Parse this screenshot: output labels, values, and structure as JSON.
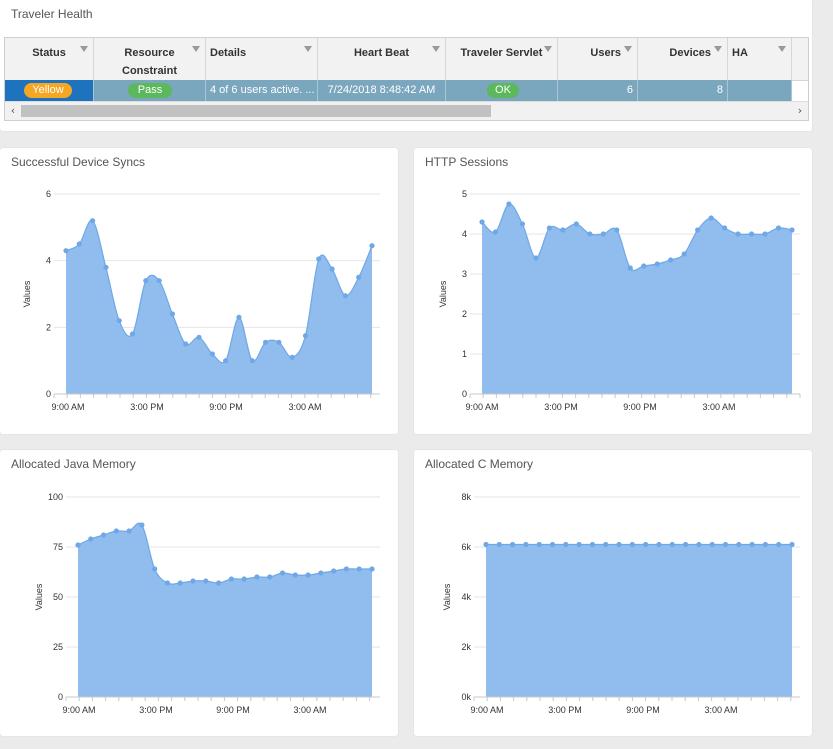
{
  "health": {
    "title": "Traveler Health",
    "columns": [
      {
        "line1": "Status",
        "line2": ""
      },
      {
        "line1": "Resource",
        "line2": "Constraint"
      },
      {
        "line1": "Details",
        "line2": ""
      },
      {
        "line1": "Heart Beat",
        "line2": ""
      },
      {
        "line1": "Traveler Servlet",
        "line2": ""
      },
      {
        "line1": "Users",
        "line2": ""
      },
      {
        "line1": "Devices",
        "line2": ""
      },
      {
        "line1": "HA",
        "line2": ""
      }
    ],
    "row": {
      "status": "Yellow",
      "resource_constraint": "Pass",
      "details": "4 of 6 users active. ...",
      "heart_beat": "7/24/2018 8:48:42 AM",
      "traveler_servlet": "OK",
      "users": "6",
      "devices": "8",
      "ha": ""
    },
    "colors": {
      "yellow_badge": "#f5a623",
      "pass_badge": "#5cb85c",
      "ok_badge": "#5cb85c",
      "row_selected": "#7aa6be"
    }
  },
  "chart_data": [
    {
      "type": "area",
      "title": "Successful Device Syncs",
      "ylabel": "Values",
      "ylim": [
        0,
        6
      ],
      "yticks": [
        "0",
        "2",
        "4",
        "6"
      ],
      "xticks": [
        "9:00 AM",
        "3:00 PM",
        "9:00 PM",
        "3:00 AM"
      ],
      "values": [
        4.3,
        4.5,
        5.2,
        3.8,
        2.2,
        1.8,
        3.4,
        3.4,
        2.4,
        1.5,
        1.7,
        1.2,
        1.0,
        2.3,
        1.0,
        1.55,
        1.55,
        1.1,
        1.75,
        4.05,
        3.75,
        2.95,
        3.5,
        4.45
      ],
      "color": "#90bdee"
    },
    {
      "type": "area",
      "title": "HTTP Sessions",
      "ylabel": "Values",
      "ylim": [
        0,
        5
      ],
      "yticks": [
        "0",
        "1",
        "2",
        "3",
        "4",
        "5"
      ],
      "xticks": [
        "9:00 AM",
        "3:00 PM",
        "9:00 PM",
        "3:00 AM"
      ],
      "values": [
        4.3,
        4.05,
        4.75,
        4.25,
        3.4,
        4.15,
        4.1,
        4.25,
        4.0,
        4.0,
        4.1,
        3.15,
        3.2,
        3.25,
        3.35,
        3.5,
        4.1,
        4.4,
        4.15,
        4.0,
        4.0,
        4.0,
        4.15,
        4.1
      ],
      "color": "#90bdee"
    },
    {
      "type": "area",
      "title": "Allocated Java Memory",
      "ylabel": "Values",
      "ylim": [
        0,
        100
      ],
      "yticks": [
        "0",
        "25",
        "50",
        "75",
        "100"
      ],
      "xticks": [
        "9:00 AM",
        "3:00 PM",
        "9:00 PM",
        "3:00 AM"
      ],
      "values": [
        76,
        79,
        81,
        83,
        83,
        86,
        64,
        57,
        57,
        58,
        58,
        57,
        59,
        59,
        60,
        60,
        62,
        61,
        61,
        62,
        63,
        64,
        64,
        64
      ],
      "color": "#90bdee"
    },
    {
      "type": "area",
      "title": "Allocated C Memory",
      "ylabel": "Values",
      "ylim": [
        0,
        8000
      ],
      "yticks": [
        "0k",
        "2k",
        "4k",
        "6k",
        "8k"
      ],
      "xticks": [
        "9:00 AM",
        "3:00 PM",
        "9:00 PM",
        "3:00 AM"
      ],
      "values": [
        6100,
        6100,
        6100,
        6100,
        6100,
        6100,
        6100,
        6100,
        6100,
        6100,
        6100,
        6100,
        6100,
        6100,
        6100,
        6100,
        6100,
        6100,
        6100,
        6100,
        6100,
        6100,
        6100,
        6100
      ],
      "color": "#90bdee"
    }
  ]
}
